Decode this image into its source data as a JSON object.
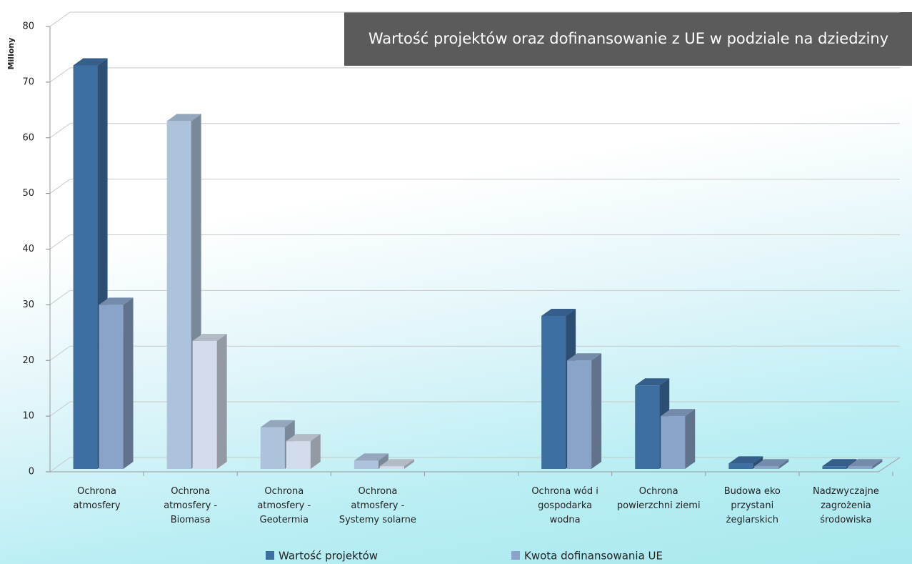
{
  "chart_data": {
    "type": "bar3d",
    "title": "Wartość projektów oraz dofinansowanie z UE w podziale na dziedziny",
    "ylabel": "Miliony",
    "categories": [
      "Ochrona atmosfery",
      "Ochrona atmosfery - Biomasa",
      "Ochrona atmosfery - Geotermia",
      "Ochrona atmosfery - Systemy solarne",
      null,
      "Ochrona wód i gospodarka wodna",
      "Ochrona powierzchni ziemi",
      "Budowa eko przystani żeglarskich",
      "Nadzwyczajne zagrożenia środowiska"
    ],
    "series": [
      {
        "name": "Wartość projektów",
        "color": "#3e6fa3",
        "colors": [
          "#3e6fa3",
          "#adc3dc",
          "#adc3dc",
          "#adc3dc",
          "#3e6fa3",
          "#3e6fa3",
          "#3e6fa3",
          "#3e6fa3",
          "#3e6fa3"
        ],
        "values": [
          73,
          63,
          8,
          2,
          null,
          28,
          15.5,
          1.5,
          1
        ]
      },
      {
        "name": "Kwota dofinansowania UE",
        "color": "#8aa3c9",
        "colors": [
          "#8aa3c9",
          "#d3dcea",
          "#d3dcea",
          "#d3dcea",
          "#8aa3c9",
          "#8aa3c9",
          "#8aa3c9",
          "#8aa3c9",
          "#8aa3c9"
        ],
        "values": [
          30,
          23.5,
          5.5,
          1,
          null,
          20,
          10,
          1,
          1
        ]
      }
    ],
    "ylim": [
      0,
      80
    ],
    "yticks": [
      0,
      10,
      20,
      30,
      40,
      50,
      60,
      70,
      80
    ],
    "grid": true,
    "legend": "bottom"
  }
}
